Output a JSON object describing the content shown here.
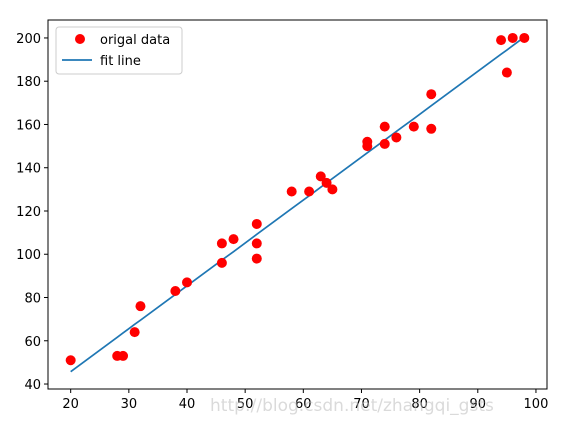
{
  "chart_data": {
    "type": "scatter",
    "title": "",
    "xlabel": "",
    "ylabel": "",
    "xlim": [
      16.1,
      101.9
    ],
    "ylim": [
      37.7,
      208.3
    ],
    "xticks": [
      20,
      30,
      40,
      50,
      60,
      70,
      80,
      90,
      100
    ],
    "yticks": [
      40,
      60,
      80,
      100,
      120,
      140,
      160,
      180,
      200
    ],
    "grid": false,
    "legend": "top-left",
    "series": [
      {
        "name": "origal data",
        "kind": "points",
        "color": "#ff0000",
        "x": [
          20,
          28,
          29,
          31,
          32,
          38,
          40,
          46,
          46,
          48,
          52,
          52,
          52,
          58,
          61,
          63,
          64,
          65,
          71,
          71,
          74,
          74,
          76,
          79,
          82,
          82,
          94,
          95,
          96,
          98
        ],
        "y": [
          51,
          53,
          53,
          64,
          76,
          83,
          87,
          105,
          96,
          107,
          114,
          105,
          98,
          129,
          129,
          136,
          133,
          130,
          152,
          150,
          159,
          151,
          154,
          159,
          174,
          158,
          199,
          184,
          200,
          200
        ]
      },
      {
        "name": "fit line",
        "kind": "line",
        "color": "#1f77b4",
        "x": [
          20,
          28,
          29,
          31,
          32,
          38,
          40,
          46,
          48,
          52,
          58,
          61,
          63,
          64,
          65,
          71,
          74,
          76,
          79,
          82,
          94,
          95,
          96,
          98
        ],
        "y": [
          45.7,
          61.6,
          63.6,
          67.6,
          69.5,
          81.4,
          85.4,
          97.3,
          101.2,
          109.2,
          121.1,
          127.0,
          131.0,
          133.0,
          135.0,
          146.9,
          152.8,
          156.8,
          162.7,
          168.7,
          192.5,
          194.4,
          196.4,
          200.4
        ]
      }
    ]
  },
  "watermark": "http://blog.csdn.net/zhangqi_gsts"
}
